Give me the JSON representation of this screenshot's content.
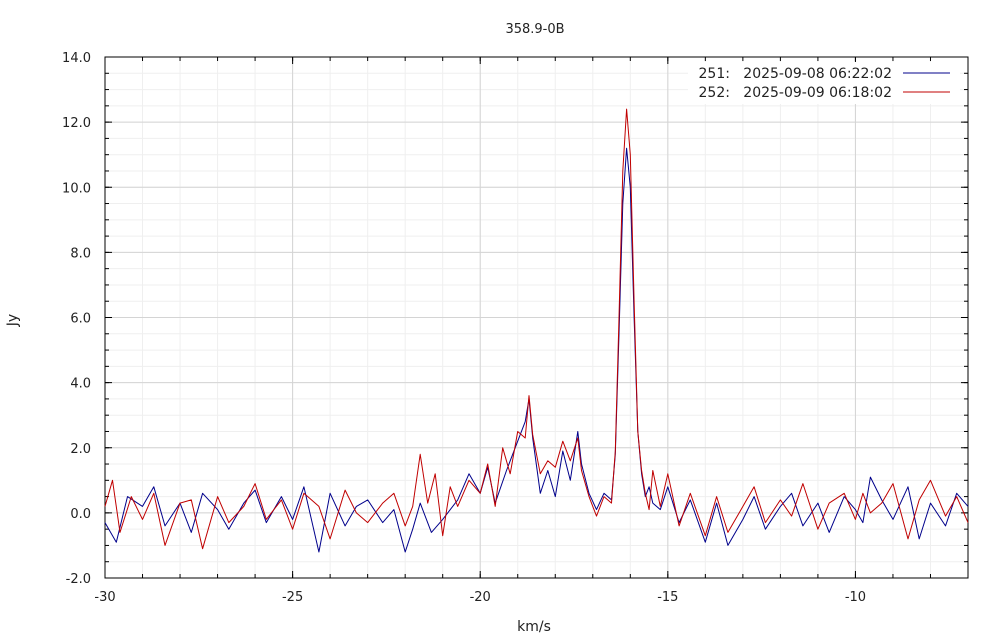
{
  "chart_data": {
    "type": "line",
    "title": "358.9-0B",
    "xlabel": "km/s",
    "ylabel": "Jy",
    "xlim": [
      -30,
      -7.0
    ],
    "ylim": [
      -2.0,
      14.0
    ],
    "xticks": [
      -30,
      -25,
      -20,
      -15,
      -10
    ],
    "xtick_labels": [
      "-30",
      "-25",
      "-20",
      "-15",
      "-10"
    ],
    "yticks": [
      -2,
      0,
      2,
      4,
      6,
      8,
      10,
      12,
      14
    ],
    "ytick_labels": [
      "-2.0",
      "0.0",
      "2.0",
      "4.0",
      "6.0",
      "8.0",
      "10.0",
      "12.0",
      "14.0"
    ],
    "grid": true,
    "legend_position": "top-right",
    "series": [
      {
        "name": "251:   2025-09-08 06:22:02",
        "color": "#00008b",
        "x": [
          -30.0,
          -29.7,
          -29.4,
          -29.0,
          -28.7,
          -28.4,
          -28.0,
          -27.7,
          -27.4,
          -27.0,
          -26.7,
          -26.3,
          -26.0,
          -25.7,
          -25.3,
          -25.0,
          -24.7,
          -24.3,
          -24.0,
          -23.6,
          -23.3,
          -23.0,
          -22.6,
          -22.3,
          -22.0,
          -21.8,
          -21.6,
          -21.3,
          -21.0,
          -20.6,
          -20.3,
          -20.0,
          -19.8,
          -19.6,
          -19.3,
          -19.0,
          -18.8,
          -18.7,
          -18.6,
          -18.4,
          -18.2,
          -18.0,
          -17.8,
          -17.6,
          -17.4,
          -17.3,
          -17.1,
          -16.9,
          -16.7,
          -16.5,
          -16.4,
          -16.3,
          -16.2,
          -16.1,
          -16.0,
          -15.9,
          -15.8,
          -15.7,
          -15.6,
          -15.5,
          -15.4,
          -15.2,
          -15.0,
          -14.7,
          -14.4,
          -14.0,
          -13.7,
          -13.4,
          -13.0,
          -12.7,
          -12.4,
          -12.0,
          -11.7,
          -11.4,
          -11.0,
          -10.7,
          -10.3,
          -10.0,
          -9.8,
          -9.6,
          -9.3,
          -9.0,
          -8.6,
          -8.3,
          -8.0,
          -7.6,
          -7.3,
          -7.0
        ],
        "y": [
          -0.3,
          -0.9,
          0.5,
          0.2,
          0.8,
          -0.4,
          0.3,
          -0.6,
          0.6,
          0.1,
          -0.5,
          0.3,
          0.7,
          -0.3,
          0.5,
          -0.2,
          0.8,
          -1.2,
          0.6,
          -0.4,
          0.2,
          0.4,
          -0.3,
          0.1,
          -1.2,
          -0.5,
          0.3,
          -0.6,
          -0.2,
          0.4,
          1.2,
          0.6,
          1.4,
          0.3,
          1.3,
          2.2,
          2.8,
          3.5,
          2.3,
          0.6,
          1.3,
          0.5,
          1.9,
          1.0,
          2.5,
          1.5,
          0.6,
          0.1,
          0.6,
          0.4,
          1.8,
          5.5,
          9.5,
          11.2,
          10.0,
          6.0,
          2.5,
          1.2,
          0.5,
          0.8,
          0.3,
          0.1,
          0.8,
          -0.3,
          0.4,
          -0.9,
          0.3,
          -1.0,
          -0.2,
          0.5,
          -0.5,
          0.2,
          0.6,
          -0.4,
          0.3,
          -0.6,
          0.5,
          0.1,
          -0.3,
          1.1,
          0.4,
          -0.2,
          0.8,
          -0.8,
          0.3,
          -0.4,
          0.6,
          0.2
        ]
      },
      {
        "name": "252:   2025-09-09 06:18:02",
        "color": "#c00000",
        "x": [
          -30.0,
          -29.8,
          -29.6,
          -29.3,
          -29.0,
          -28.7,
          -28.4,
          -28.0,
          -27.7,
          -27.4,
          -27.0,
          -26.7,
          -26.3,
          -26.0,
          -25.7,
          -25.3,
          -25.0,
          -24.7,
          -24.3,
          -24.0,
          -23.6,
          -23.3,
          -23.0,
          -22.6,
          -22.3,
          -22.0,
          -21.8,
          -21.6,
          -21.4,
          -21.2,
          -21.0,
          -20.8,
          -20.6,
          -20.3,
          -20.0,
          -19.8,
          -19.6,
          -19.4,
          -19.2,
          -19.0,
          -18.8,
          -18.7,
          -18.6,
          -18.4,
          -18.2,
          -18.0,
          -17.8,
          -17.6,
          -17.4,
          -17.3,
          -17.1,
          -16.9,
          -16.7,
          -16.5,
          -16.4,
          -16.3,
          -16.2,
          -16.1,
          -16.0,
          -15.9,
          -15.8,
          -15.7,
          -15.6,
          -15.5,
          -15.4,
          -15.2,
          -15.0,
          -14.7,
          -14.4,
          -14.0,
          -13.7,
          -13.4,
          -13.0,
          -12.7,
          -12.4,
          -12.0,
          -11.7,
          -11.4,
          -11.0,
          -10.7,
          -10.3,
          -10.0,
          -9.8,
          -9.6,
          -9.3,
          -9.0,
          -8.6,
          -8.3,
          -8.0,
          -7.6,
          -7.3,
          -7.0
        ],
        "y": [
          0.2,
          1.0,
          -0.6,
          0.5,
          -0.2,
          0.6,
          -1.0,
          0.3,
          0.4,
          -1.1,
          0.5,
          -0.3,
          0.2,
          0.9,
          -0.2,
          0.4,
          -0.5,
          0.6,
          0.2,
          -0.8,
          0.7,
          0.0,
          -0.3,
          0.3,
          0.6,
          -0.4,
          0.2,
          1.8,
          0.3,
          1.2,
          -0.7,
          0.8,
          0.2,
          1.0,
          0.6,
          1.5,
          0.2,
          2.0,
          1.2,
          2.5,
          2.3,
          3.6,
          2.4,
          1.2,
          1.6,
          1.4,
          2.2,
          1.6,
          2.3,
          1.3,
          0.5,
          -0.1,
          0.5,
          0.3,
          1.9,
          6.0,
          10.5,
          12.4,
          11.0,
          6.5,
          2.5,
          1.3,
          0.6,
          0.1,
          1.3,
          0.2,
          1.2,
          -0.4,
          0.6,
          -0.7,
          0.5,
          -0.6,
          0.2,
          0.8,
          -0.3,
          0.4,
          -0.1,
          0.9,
          -0.5,
          0.3,
          0.6,
          -0.2,
          0.6,
          0.0,
          0.3,
          0.9,
          -0.8,
          0.4,
          1.0,
          -0.1,
          0.5,
          -0.3
        ]
      }
    ]
  }
}
